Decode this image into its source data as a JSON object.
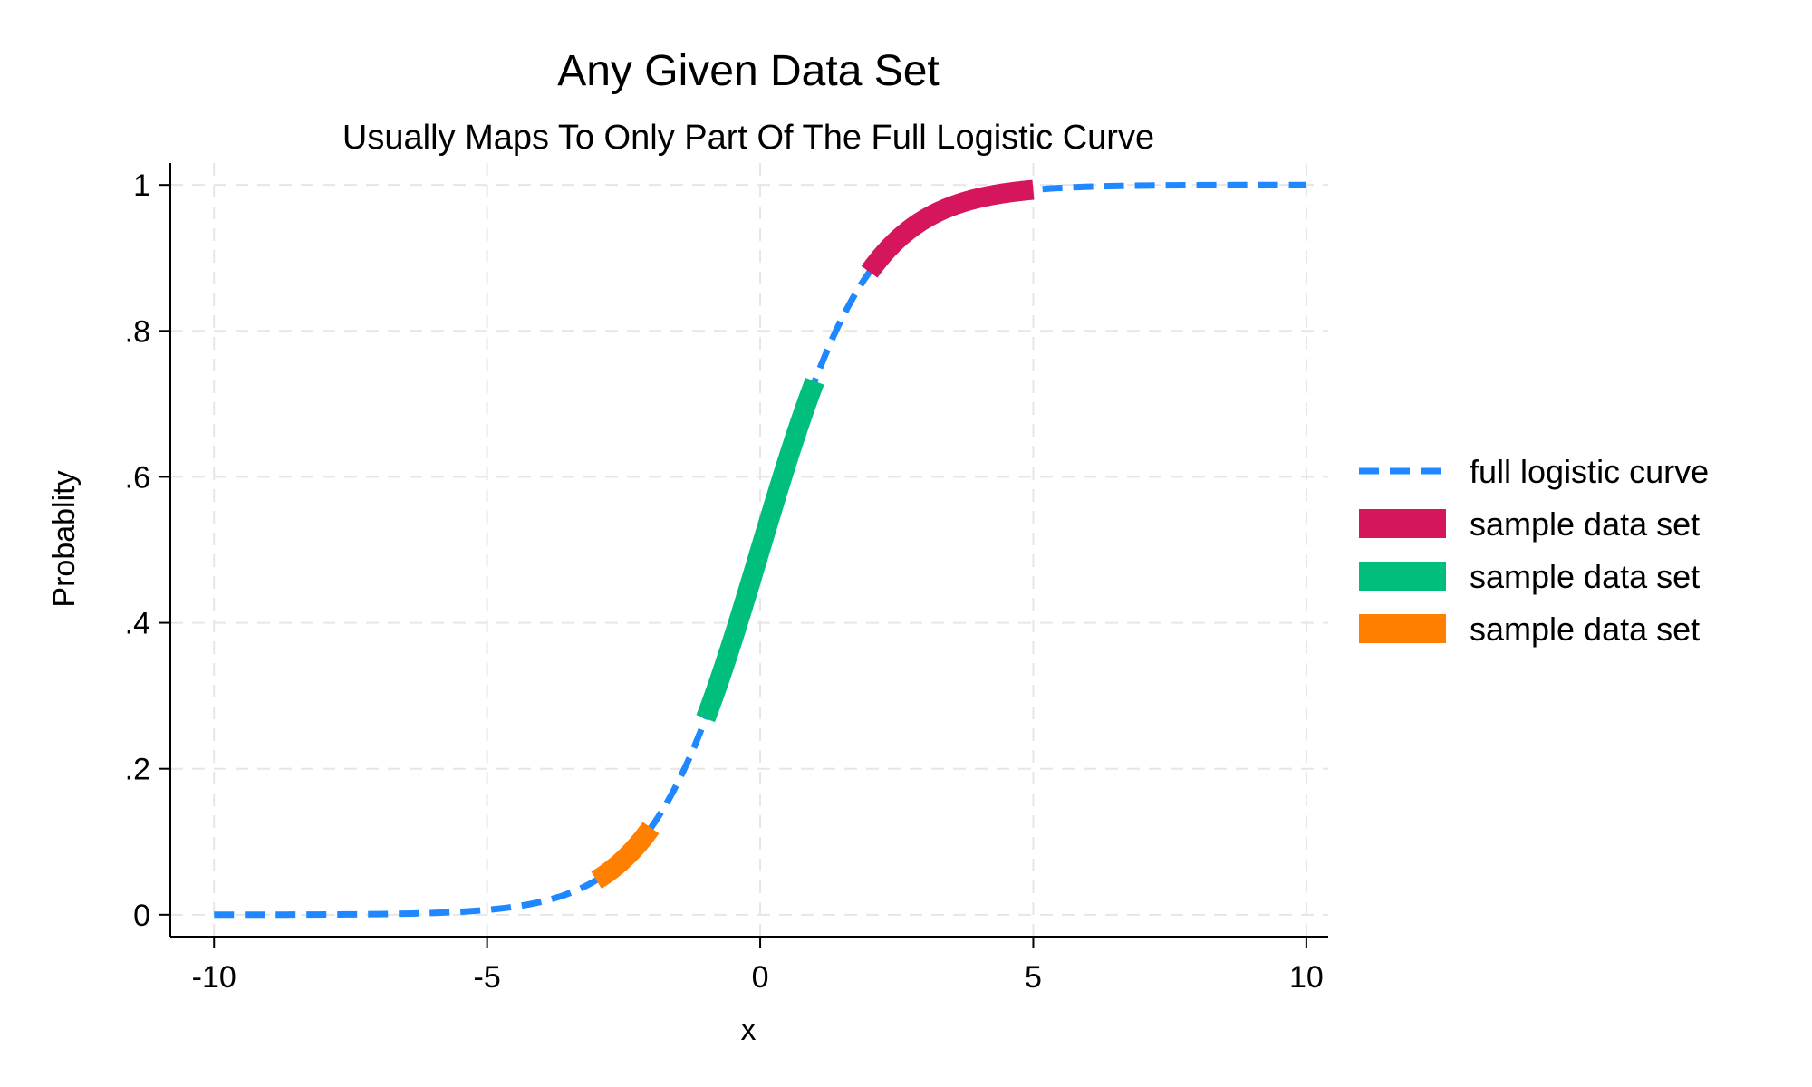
{
  "chart_data": {
    "type": "line",
    "title": "Any Given Data Set",
    "subtitle": "Usually Maps To Only Part Of The Full Logistic Curve",
    "xlabel": "x",
    "ylabel": "Probablity",
    "xlim": [
      -10.8,
      10.4
    ],
    "ylim": [
      -0.03,
      1.03
    ],
    "x_ticks": [
      -10,
      -5,
      0,
      5,
      10
    ],
    "x_tick_labels": [
      "-10",
      "-5",
      "0",
      "5",
      "10"
    ],
    "y_ticks": [
      0,
      0.2,
      0.4,
      0.6,
      0.8,
      1
    ],
    "y_tick_labels": [
      "0",
      ".2",
      ".4",
      ".6",
      ".8",
      "1"
    ],
    "grid": true,
    "legend_position": "right",
    "series": [
      {
        "name": "full logistic curve",
        "style": "dashed",
        "color": "#1f87ff",
        "x_range": [
          -10,
          10
        ],
        "points": [
          [
            -10,
            0.0
          ],
          [
            -9,
            0.0001
          ],
          [
            -8,
            0.0003
          ],
          [
            -7,
            0.0009
          ],
          [
            -6,
            0.0025
          ],
          [
            -5,
            0.0067
          ],
          [
            -4.5,
            0.011
          ],
          [
            -4,
            0.018
          ],
          [
            -3.5,
            0.029
          ],
          [
            -3,
            0.047
          ],
          [
            -2.5,
            0.076
          ],
          [
            -2,
            0.119
          ],
          [
            -1.5,
            0.182
          ],
          [
            -1,
            0.269
          ],
          [
            -0.5,
            0.378
          ],
          [
            0,
            0.5
          ],
          [
            0.5,
            0.622
          ],
          [
            1,
            0.731
          ],
          [
            1.5,
            0.818
          ],
          [
            2,
            0.881
          ],
          [
            2.5,
            0.924
          ],
          [
            3,
            0.953
          ],
          [
            3.5,
            0.971
          ],
          [
            4,
            0.982
          ],
          [
            4.5,
            0.989
          ],
          [
            5,
            0.993
          ],
          [
            6,
            0.9975
          ],
          [
            7,
            0.9991
          ],
          [
            8,
            0.9997
          ],
          [
            9,
            0.9999
          ],
          [
            10,
            1.0
          ]
        ]
      },
      {
        "name": "sample data set",
        "style": "solid",
        "color": "#d6165c",
        "x_range": [
          2,
          5
        ],
        "points": [
          [
            2,
            0.881
          ],
          [
            2.5,
            0.924
          ],
          [
            3,
            0.953
          ],
          [
            3.5,
            0.971
          ],
          [
            4,
            0.982
          ],
          [
            4.5,
            0.989
          ],
          [
            5,
            0.993
          ]
        ]
      },
      {
        "name": "sample data set",
        "style": "solid",
        "color": "#00bf7d",
        "x_range": [
          -1,
          1
        ],
        "points": [
          [
            -1,
            0.269
          ],
          [
            -0.5,
            0.378
          ],
          [
            0,
            0.5
          ],
          [
            0.5,
            0.622
          ],
          [
            1,
            0.731
          ]
        ]
      },
      {
        "name": "sample data set",
        "style": "solid",
        "color": "#ff7f00",
        "x_range": [
          -3,
          -2
        ],
        "points": [
          [
            -3,
            0.047
          ],
          [
            -2.5,
            0.076
          ],
          [
            -2,
            0.119
          ]
        ]
      }
    ]
  }
}
